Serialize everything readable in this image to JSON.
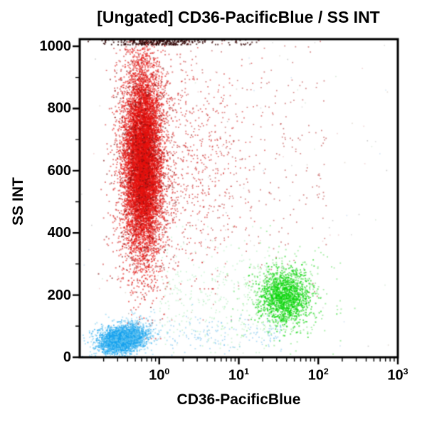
{
  "page": {
    "background": "#FFFFFF",
    "axis_color": "#000000"
  },
  "chart_data": {
    "type": "scatter",
    "subtype": "flow-cytometry-dot-plot",
    "title": "[Ungated] CD36-PacificBlue / SS INT",
    "xlabel": "CD36-PacificBlue",
    "ylabel": "SS INT",
    "x_scale": "log",
    "x_log_range": [
      -1,
      3
    ],
    "y_range": [
      0,
      1023
    ],
    "grid": false,
    "legend": "none",
    "x_ticks": [
      {
        "value": 1,
        "base": "10",
        "exp": "0"
      },
      {
        "value": 10,
        "base": "10",
        "exp": "1"
      },
      {
        "value": 100,
        "base": "10",
        "exp": "2"
      },
      {
        "value": 1000,
        "base": "10",
        "exp": "3"
      }
    ],
    "y_ticks": [
      {
        "value": 0,
        "label": "0"
      },
      {
        "value": 200,
        "label": "200"
      },
      {
        "value": 400,
        "label": "400"
      },
      {
        "value": 600,
        "label": "600"
      },
      {
        "value": 800,
        "label": "800"
      },
      {
        "value": 1000,
        "label": "1000"
      }
    ],
    "y_minor_ticks": [
      100,
      300,
      500,
      700,
      900
    ],
    "noise_palette": [
      "#BDBDBD",
      "#C9B9A9",
      "#E8A8A8",
      "#A8C8E8",
      "#999999",
      "#B8D8B8"
    ],
    "populations": [
      {
        "name": "red-main-core",
        "color": "#E8100C",
        "alpha": 0.55,
        "size": 2,
        "n": 9000,
        "x": {
          "dist": "normal",
          "mean": -0.205,
          "sd": 0.115
        },
        "y": {
          "dist": "normal",
          "mean": 625,
          "sd": 150
        },
        "y_clip": [
          40,
          1023
        ]
      },
      {
        "name": "red-main-fringe",
        "color": "#CC1616",
        "alpha": 0.5,
        "size": 2,
        "n": 1500,
        "x": {
          "dist": "normal",
          "mean": -0.205,
          "sd": 0.2
        },
        "y": {
          "dist": "normal",
          "mean": 625,
          "sd": 210
        },
        "y_clip": [
          60,
          1023
        ]
      },
      {
        "name": "red-dark-speckle",
        "color": "#7E1111",
        "alpha": 0.6,
        "size": 2,
        "n": 420,
        "x": {
          "dist": "normal",
          "mean": -0.21,
          "sd": 0.17
        },
        "y": {
          "dist": "normal",
          "mean": 620,
          "sd": 185
        },
        "y_clip": [
          60,
          1023
        ]
      },
      {
        "name": "red-pileup-top",
        "color": "#300606",
        "alpha": 0.8,
        "size": 2,
        "n": 230,
        "x": {
          "dist": "normal",
          "mean": -0.08,
          "sd": 0.28
        },
        "y": {
          "dist": "uniform",
          "min": 1004,
          "max": 1023
        }
      },
      {
        "name": "red-pileup-wide",
        "color": "#3A0808",
        "alpha": 0.7,
        "size": 2,
        "n": 70,
        "x": {
          "dist": "uniform",
          "min": -0.45,
          "max": 1.25
        },
        "y": {
          "dist": "uniform",
          "min": 1004,
          "max": 1023
        }
      },
      {
        "name": "red-sparse-near",
        "color": "#D01414",
        "alpha": 0.55,
        "size": 1.8,
        "n": 500,
        "x": {
          "dist": "normal",
          "mean": 0.42,
          "sd": 0.35
        },
        "y": {
          "dist": "normal",
          "mean": 650,
          "sd": 190
        },
        "y_clip": [
          220,
          1023
        ]
      },
      {
        "name": "red-sparse-wide",
        "color": "#B22222",
        "alpha": 0.5,
        "size": 1.8,
        "n": 380,
        "x": {
          "dist": "uniform",
          "min": -0.1,
          "max": 2.1
        },
        "y": {
          "dist": "normal",
          "mean": 600,
          "sd": 230
        },
        "y_clip": [
          120,
          1023
        ]
      },
      {
        "name": "green-main",
        "color": "#09D609",
        "alpha": 0.6,
        "size": 2,
        "n": 1400,
        "x": {
          "dist": "normal",
          "mean": 1.58,
          "sd": 0.16
        },
        "y": {
          "dist": "normal",
          "mean": 195,
          "sd": 43
        },
        "y_clip": [
          15,
          460
        ]
      },
      {
        "name": "green-fringe",
        "color": "#54DE54",
        "alpha": 0.45,
        "size": 2,
        "n": 350,
        "x": {
          "dist": "normal",
          "mean": 1.57,
          "sd": 0.3
        },
        "y": {
          "dist": "normal",
          "mean": 197,
          "sd": 75
        },
        "y_clip": [
          10,
          480
        ]
      },
      {
        "name": "green-halo-sparse",
        "color": "#8FE89F",
        "alpha": 0.4,
        "size": 1.8,
        "n": 300,
        "x": {
          "dist": "uniform",
          "min": 0.0,
          "max": 1.45
        },
        "y": {
          "dist": "normal",
          "mean": 190,
          "sd": 95
        },
        "y_clip": [
          15,
          420
        ]
      },
      {
        "name": "blue-main",
        "color": "#17A3F0",
        "alpha": 0.6,
        "size": 2,
        "n": 2600,
        "x": {
          "dist": "normal",
          "mean": -0.46,
          "sd": 0.13
        },
        "y": {
          "dist": "normal",
          "mean": 58,
          "sd": 19
        },
        "tilt": 40,
        "y_clip": [
          2,
          160
        ]
      },
      {
        "name": "blue-fringe",
        "color": "#72C9F2",
        "alpha": 0.5,
        "size": 2,
        "n": 600,
        "x": {
          "dist": "normal",
          "mean": -0.44,
          "sd": 0.21
        },
        "y": {
          "dist": "normal",
          "mean": 62,
          "sd": 30
        },
        "tilt": 40,
        "y_clip": [
          2,
          190
        ]
      },
      {
        "name": "blue-trail-sparse",
        "color": "#66BBEE",
        "alpha": 0.5,
        "size": 1.8,
        "n": 150,
        "x": {
          "dist": "uniform",
          "min": 0.1,
          "max": 1.55
        },
        "y": {
          "dist": "normal",
          "mean": 72,
          "sd": 32
        },
        "y_clip": [
          4,
          170
        ]
      },
      {
        "name": "debris-noise",
        "color": "palette",
        "alpha": 0.5,
        "size": 1.6,
        "n": 120,
        "x": {
          "dist": "uniform",
          "min": -0.98,
          "max": 2.95
        },
        "y": {
          "dist": "uniform",
          "min": 5,
          "max": 1015
        }
      }
    ]
  }
}
